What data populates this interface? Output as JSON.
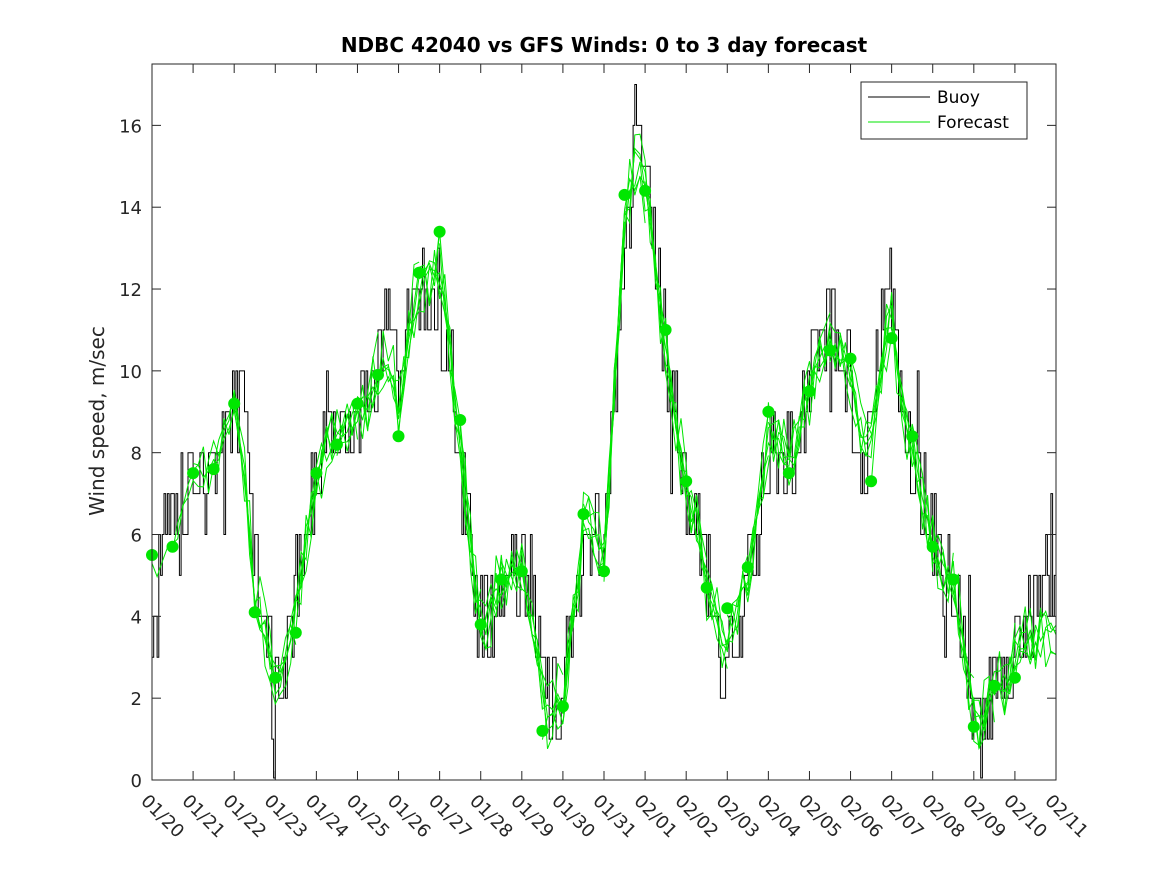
{
  "chart_data": {
    "type": "line",
    "title": "NDBC 42040 vs GFS Winds: 0 to 3 day forecast",
    "xlabel": "",
    "ylabel": "Wind speed, m/sec",
    "xlim": [
      0,
      22
    ],
    "ylim": [
      0,
      17.5
    ],
    "yticks": [
      0,
      2,
      4,
      6,
      8,
      10,
      12,
      14,
      16
    ],
    "x_tick_labels": [
      "01/20",
      "01/21",
      "01/22",
      "01/23",
      "01/24",
      "01/25",
      "01/26",
      "01/27",
      "01/28",
      "01/29",
      "01/30",
      "01/31",
      "02/01",
      "02/02",
      "02/03",
      "02/04",
      "02/05",
      "02/06",
      "02/07",
      "02/08",
      "02/09",
      "02/10",
      "02/11"
    ],
    "legend": {
      "placement": "top-right",
      "entries": [
        "Buoy",
        "Forecast"
      ]
    },
    "colors": {
      "buoy": "#000000",
      "forecast": "#00e600",
      "axis": "#262626"
    },
    "forecast_markers": {
      "x": [
        0,
        0.5,
        1,
        1.5,
        2,
        2.5,
        3,
        3.5,
        4,
        4.5,
        5,
        5.5,
        6,
        6.5,
        7,
        7.5,
        8,
        8.5,
        9,
        9.5,
        10,
        10.5,
        11,
        11.5,
        12,
        12.5,
        13,
        13.5,
        14,
        14.5,
        15,
        15.5,
        16,
        16.5,
        17,
        17.5,
        18,
        18.5,
        19,
        19.5,
        20,
        20.5,
        21
      ],
      "y": [
        5.5,
        5.7,
        7.5,
        7.6,
        9.2,
        4.1,
        2.5,
        3.6,
        7.5,
        8.2,
        9.2,
        9.9,
        8.4,
        12.4,
        13.4,
        8.8,
        3.8,
        4.9,
        5.1,
        1.2,
        1.8,
        6.5,
        5.1,
        14.3,
        14.4,
        11.0,
        7.3,
        4.7,
        4.2,
        5.2,
        9.0,
        7.5,
        9.5,
        10.5,
        10.3,
        7.3,
        10.8,
        8.4,
        5.7,
        4.9,
        1.3,
        2.3,
        2.5
      ]
    },
    "buoy_anchor_series": {
      "name": "Buoy",
      "x": [
        0,
        0.3,
        0.5,
        0.8,
        1,
        1.3,
        1.5,
        1.8,
        2,
        2.2,
        2.5,
        2.8,
        3,
        3.3,
        3.6,
        4,
        4.3,
        4.6,
        5,
        5.3,
        5.6,
        5.8,
        6,
        6.3,
        6.6,
        7,
        7.3,
        7.6,
        8,
        8.3,
        8.6,
        9,
        9.3,
        9.6,
        10,
        10.3,
        10.6,
        11,
        11.3,
        11.6,
        11.8,
        12,
        12.3,
        12.6,
        13,
        13.3,
        13.6,
        13.9,
        14.2,
        14.5,
        14.8,
        15,
        15.3,
        15.6,
        16,
        16.3,
        16.6,
        17,
        17.3,
        17.6,
        17.8,
        18,
        18.3,
        18.6,
        19,
        19.3,
        19.6,
        19.9,
        20.2,
        20.5,
        20.8,
        21,
        21.3,
        21.6,
        22
      ],
      "y": [
        3,
        6,
        5.5,
        7,
        7.2,
        7.6,
        8,
        8.6,
        9.2,
        9.2,
        5,
        3.5,
        2.6,
        3.2,
        5.5,
        7.5,
        9,
        8.5,
        8.6,
        9,
        11,
        11.5,
        9.5,
        11.8,
        11.8,
        11.5,
        9.5,
        6.5,
        4,
        4,
        5,
        4.8,
        4.6,
        2,
        2,
        4,
        6.5,
        5.5,
        10,
        14,
        16.5,
        15,
        12,
        9.5,
        7,
        6,
        4.2,
        2,
        3.5,
        4.8,
        6.5,
        8,
        8.5,
        7.5,
        9.5,
        11.5,
        11,
        9.5,
        7.5,
        10,
        11.5,
        12,
        8,
        7.5,
        6,
        5,
        4.5,
        2,
        1,
        2.5,
        2,
        3.5,
        4.3,
        4.5,
        4.5
      ]
    }
  }
}
